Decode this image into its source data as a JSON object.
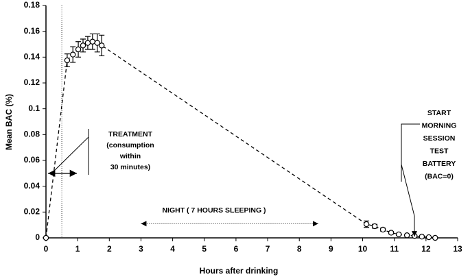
{
  "chart_data": {
    "type": "line",
    "x_label": "Hours after drinking",
    "y_label": "Mean BAC (%)",
    "xlim": [
      0,
      13
    ],
    "ylim": [
      0,
      0.18
    ],
    "xticks": [
      0,
      1,
      2,
      3,
      4,
      5,
      6,
      7,
      8,
      9,
      10,
      11,
      12,
      13
    ],
    "yticks": [
      0,
      0.02,
      0.04,
      0.06,
      0.08,
      0.1,
      0.12,
      0.14,
      0.16,
      0.18
    ],
    "grid": false,
    "series": [
      {
        "color": "#000000",
        "x": [
          0,
          0.67,
          0.85,
          1.02,
          1.17,
          1.32,
          1.47,
          1.62,
          1.76,
          10.12,
          10.38,
          10.64,
          10.9,
          11.14,
          11.4,
          11.64,
          11.87,
          12.09,
          12.29
        ],
        "values": [
          0,
          0.1375,
          0.142,
          0.146,
          0.149,
          0.151,
          0.152,
          0.151,
          0.149,
          0.0106,
          0.009,
          0.0064,
          0.004,
          0.0027,
          0.002,
          0.0015,
          0.001,
          0.0005,
          0
        ],
        "errors": [
          0,
          0.005,
          0.006,
          0.006,
          0.005,
          0.005,
          0.006,
          0.007,
          0.008,
          0.0025,
          0.0015,
          0.0012,
          0.001,
          0.0008,
          0.0006,
          0.0005,
          0.0004,
          0.0003,
          0.0003
        ]
      }
    ],
    "treatment_end_x": 0.5,
    "annotations": {
      "treatment": [
        "TREATMENT",
        "(consumption",
        "within",
        "30 minutes)"
      ],
      "night": "NIGHT ( 7 HOURS SLEEPING )",
      "start": [
        "START",
        "MORNING",
        "SESSION",
        "TEST",
        "BATTERY",
        "(BAC=0)"
      ]
    }
  }
}
